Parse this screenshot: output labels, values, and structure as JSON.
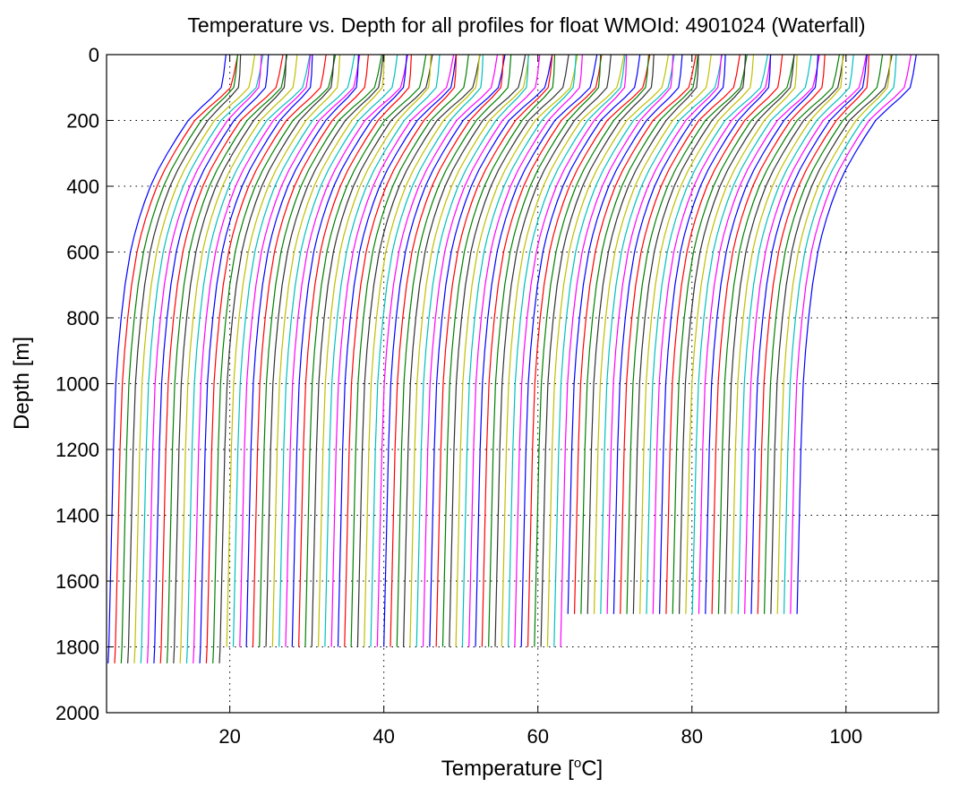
{
  "chart_data": {
    "type": "line",
    "title": "Temperature vs. Depth for all profiles for float WMOId: 4901024 (Waterfall)",
    "xlabel": "Temperature [",
    "xlabel_superscript": "o",
    "xlabel_unit": "C]",
    "ylabel": "Depth [m]",
    "xlim": [
      4,
      112
    ],
    "ylim": [
      0,
      2000
    ],
    "y_reversed": true,
    "grid": true,
    "x_ticks": [
      "20",
      "40",
      "60",
      "80",
      "100"
    ],
    "x_tick_values": [
      20,
      40,
      60,
      80,
      100
    ],
    "y_ticks": [
      "0",
      "200",
      "400",
      "600",
      "800",
      "1000",
      "1200",
      "1400",
      "1600",
      "1800",
      "2000"
    ],
    "y_tick_values": [
      0,
      200,
      400,
      600,
      800,
      1000,
      1200,
      1400,
      1600,
      1800,
      2000
    ],
    "series_colors": [
      "#0000ff",
      "#ff0000",
      "#008000",
      "#333333",
      "#bfbf00",
      "#00bfbf",
      "#ff00ff"
    ],
    "profile_count": 106,
    "profile_offset": 0.85,
    "first_profile": {
      "depth": [
        0,
        20,
        60,
        100,
        130,
        160,
        200,
        250,
        300,
        350,
        400,
        450,
        500,
        550,
        600,
        700,
        800,
        900,
        1000,
        1200,
        1400,
        1600,
        1800,
        1850
      ],
      "temperature": [
        19.5,
        19.4,
        19.2,
        18.9,
        17.7,
        16.3,
        14.6,
        13.2,
        11.9,
        10.7,
        9.7,
        8.9,
        8.2,
        7.6,
        7.1,
        6.4,
        5.9,
        5.5,
        5.2,
        4.9,
        4.7,
        4.5,
        4.3,
        4.2
      ]
    }
  }
}
